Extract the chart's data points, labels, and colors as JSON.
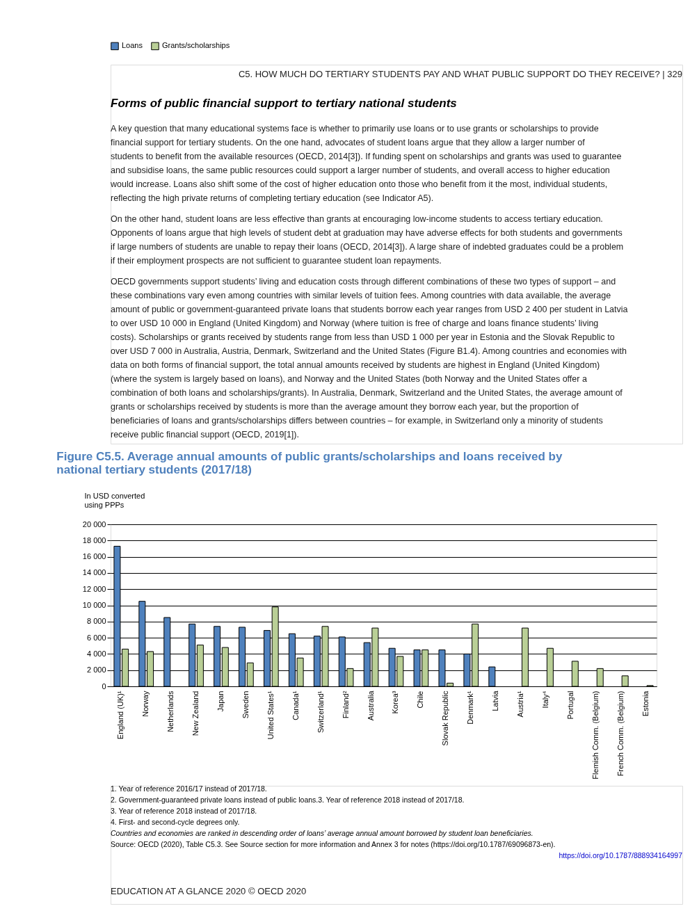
{
  "chart_data": {
    "type": "bar",
    "title": "Figure C5.5. Average annual amounts of public grants/scholarships and loans received by national tertiary students (2017/18)",
    "ylabel": "In USD converted using PPPs",
    "categories": [
      "England (UK)¹",
      "Norway",
      "Netherlands",
      "New Zealand",
      "Japan",
      "Sweden",
      "United States¹",
      "Canada¹",
      "Switzerland¹",
      "Finland²",
      "Australia",
      "Korea³",
      "Chile",
      "Slovak Republic",
      "Denmark¹",
      "Latvia",
      "Austria¹",
      "Italy⁴",
      "Portugal",
      "Flemish Comm. (Belgium)",
      "French Comm. (Belgium)",
      "Estonia"
    ],
    "series": [
      {
        "name": "Loans",
        "color": "#4f81bd",
        "values": [
          17300,
          10500,
          8500,
          7700,
          7400,
          7300,
          6900,
          6500,
          6200,
          6100,
          5400,
          4700,
          4500,
          4500,
          4000,
          2400,
          null,
          null,
          null,
          null,
          null,
          null
        ]
      },
      {
        "name": "Grants/scholarships",
        "color": "#b9cf96",
        "values": [
          4600,
          4300,
          null,
          5100,
          4800,
          2900,
          9800,
          3500,
          7400,
          2200,
          7200,
          3700,
          4500,
          400,
          7700,
          null,
          7200,
          4700,
          3100,
          2200,
          1300,
          100
        ]
      }
    ],
    "ylim": [
      0,
      20000
    ],
    "yticks": [
      {
        "value": 0,
        "label": "0"
      },
      {
        "value": 2000,
        "label": "2 000"
      },
      {
        "value": 4000,
        "label": "4 000"
      },
      {
        "value": 6000,
        "label": "6 000"
      },
      {
        "value": 8000,
        "label": "8 000"
      },
      {
        "value": 10000,
        "label": "10 000"
      },
      {
        "value": 12000,
        "label": "12 000"
      },
      {
        "value": 14000,
        "label": "14 000"
      },
      {
        "value": 16000,
        "label": "16 000"
      },
      {
        "value": 18000,
        "label": "18 000"
      },
      {
        "value": 20000,
        "label": "20 000"
      }
    ],
    "grid": "y",
    "legend": "top",
    "annotations": [
      "C5. HOW MUCH DO TERTIARY STUDENTS PAY AND WHAT PUBLIC SUPPORT DO THEY RECEIVE? | 329",
      "Forms of public financial support to tertiary national students",
      "A key question that many educational systems face is whether to primarily use loans or to use grants or scholarships to provide financial support for tertiary students. On the one hand, advocates of student loans argue that they allow a larger number of students to benefit from the available resources (OECD, 2014[3]). If funding spent on scholarships and grants was used to guarantee and subsidise loans, the same public resources could support a larger number of students, and overall access to higher education would increase. Loans also shift some of the cost of higher education onto those who benefit from it the most, individual students, reflecting the high private returns of completing tertiary education (see Indicator A5).",
      "On the other hand, student loans are less effective than grants at encouraging low-income students to access tertiary education. Opponents of loans argue that high levels of student debt at graduation may have adverse effects for both students and governments if large numbers of students are unable to repay their loans (OECD, 2014[3]). A large share of indebted graduates could be a problem if their employment prospects are not sufficient to guarantee student loan repayments.",
      "OECD governments support students’ living and education costs through different combinations of these two types of support – and these combinations vary even among countries with similar levels of tuition fees. Among countries with data available, the average amount of public or government-guaranteed private loans that students borrow each year ranges from USD 2 400 per student in Latvia to over USD 10 000 in England (United Kingdom) and Norway (where tuition is free of charge and loans finance students’ living costs). Scholarships or grants received by students range from less than USD 1 000 per year in Estonia and the Slovak Republic to over USD 7 000 in Australia, Austria, Denmark, Switzerland and the United States (Figure B1.4). Among countries and economies with data on both forms of financial support, the total annual amounts received by students are highest in England (United Kingdom) (where the system is largely based on loans), and Norway and the United States (both Norway and the United States offer a combination of both loans and scholarships/grants). In Australia, Denmark, Switzerland and the United States, the average amount of grants or scholarships received by students is more than the average amount they borrow each year, but the proportion of beneficiaries of loans and grants/scholarships differs between countries – for example, in Switzerland only a minority of students receive public financial support (OECD, 2019[1]).",
      "1. Year of reference 2016/17 instead of 2017/18.",
      "2. Government-guaranteed private loans instead of public loans.3. Year of reference 2018 instead of 2017/18.",
      "3. Year of reference 2018 instead of 2017/18.",
      "4. First- and second-cycle degrees only.",
      "Countries and economies are ranked in descending order of loans’ average annual amount borrowed by student loan beneficiaries.",
      "Source: OECD (2020), Table C5.3. See Source section for more information and Annex 3 for notes (https://doi.org/10.1787/69096873-en).",
      "https://doi.org/10.1787/888934164997",
      "EDUCATION AT A GLANCE 2020 © OECD 2020"
    ]
  }
}
